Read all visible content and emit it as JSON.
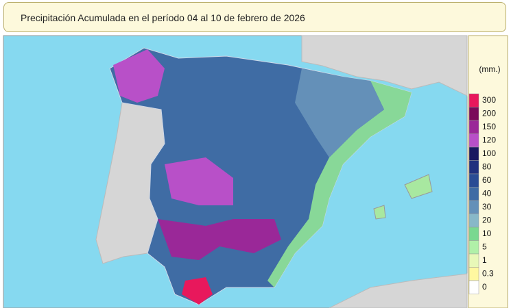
{
  "header": {
    "title": "Precipitación Acumulada en el período 04 al 10 de febrero de 2026"
  },
  "legend": {
    "unit": "(mm.)",
    "items": [
      {
        "label": "300",
        "color": "#e8185c"
      },
      {
        "label": "200",
        "color": "#7a0a5a"
      },
      {
        "label": "150",
        "color": "#9a2898"
      },
      {
        "label": "120",
        "color": "#b850c8"
      },
      {
        "label": "100",
        "color": "#1a1860"
      },
      {
        "label": "80",
        "color": "#20307e"
      },
      {
        "label": "60",
        "color": "#2a4c94"
      },
      {
        "label": "40",
        "color": "#3f6ca4"
      },
      {
        "label": "30",
        "color": "#6490b8"
      },
      {
        "label": "20",
        "color": "#88b8c8"
      },
      {
        "label": "10",
        "color": "#7ad890"
      },
      {
        "label": "5",
        "color": "#b0f0a8"
      },
      {
        "label": "1",
        "color": "#e8f8b8"
      },
      {
        "label": "0.3",
        "color": "#fff8a0"
      },
      {
        "label": "0",
        "color": "#ffffff"
      }
    ]
  }
}
